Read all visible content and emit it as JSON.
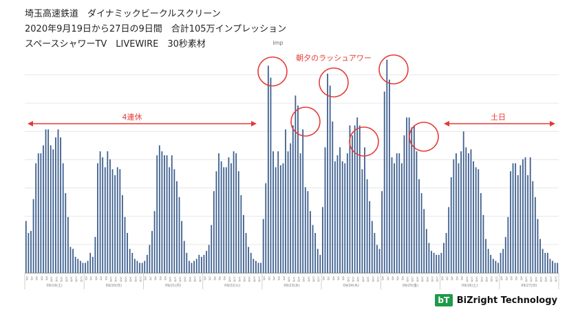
{
  "header": {
    "line1": "埼玉高速鉄道　ダイナミックビークルスクリーン",
    "line2": "2020年9月19日から27日の9日間　合計105万インプレッション",
    "line3": "スペースシャワーTV　LIVEWIRE　30秒素材"
  },
  "brand": {
    "logo_mark": "bT",
    "name": "BiZright Technology",
    "logo_color": "#1d9a4a"
  },
  "annotations": {
    "rush_label": "朝夕のラッシュアワー",
    "holiday_label": "4連休",
    "weekend_label": "土日",
    "accent_color": "#e53935"
  },
  "chart_data": {
    "type": "bar",
    "ylabel": "imp",
    "grid": true,
    "bar_color": "#3d5f8f",
    "hours": [
      "0時",
      "1時",
      "2時",
      "3時",
      "4時",
      "5時",
      "6時",
      "7時",
      "8時",
      "9時",
      "10時",
      "11時",
      "12時",
      "13時",
      "14時",
      "15時",
      "16時",
      "17時",
      "18時",
      "19時",
      "20時",
      "21時",
      "22時",
      "23時"
    ],
    "days": [
      "09/19(土)",
      "09/20(日)",
      "09/21(月)",
      "09/22(火)",
      "09/23(水)",
      "09/24(木)",
      "09/25(金)",
      "09/26(土)",
      "09/27(日)"
    ],
    "series": [
      {
        "values": [
          0.26,
          0.2,
          0.21,
          0.37,
          0.55,
          0.6,
          0.6,
          0.64,
          0.72,
          0.72,
          0.64,
          0.62,
          0.68,
          0.72,
          0.68,
          0.55,
          0.4,
          0.28,
          0.13,
          0.12,
          0.08,
          0.07,
          0.06,
          0.05
        ]
      },
      {
        "values": [
          0.05,
          0.06,
          0.1,
          0.08,
          0.18,
          0.55,
          0.61,
          0.58,
          0.53,
          0.61,
          0.57,
          0.52,
          0.49,
          0.53,
          0.52,
          0.39,
          0.28,
          0.2,
          0.12,
          0.1,
          0.07,
          0.06,
          0.05,
          0.05
        ]
      },
      {
        "values": [
          0.06,
          0.09,
          0.14,
          0.21,
          0.31,
          0.59,
          0.64,
          0.61,
          0.59,
          0.59,
          0.53,
          0.59,
          0.52,
          0.46,
          0.38,
          0.26,
          0.16,
          0.1,
          0.06,
          0.05,
          0.06,
          0.07,
          0.09,
          0.08
        ]
      },
      {
        "values": [
          0.09,
          0.11,
          0.14,
          0.24,
          0.41,
          0.51,
          0.6,
          0.56,
          0.53,
          0.53,
          0.58,
          0.55,
          0.61,
          0.6,
          0.51,
          0.39,
          0.29,
          0.2,
          0.13,
          0.1,
          0.07,
          0.06,
          0.05,
          0.05
        ]
      },
      {
        "values": [
          0.27,
          0.45,
          1.04,
          0.98,
          0.61,
          0.53,
          0.61,
          0.54,
          0.55,
          0.72,
          0.61,
          0.65,
          0.74,
          0.89,
          0.84,
          0.6,
          0.72,
          0.43,
          0.41,
          0.31,
          0.24,
          0.2,
          0.12,
          0.09
        ]
      },
      {
        "values": [
          0.33,
          0.63,
          1.0,
          0.94,
          0.76,
          0.56,
          0.59,
          0.63,
          0.56,
          0.55,
          0.6,
          0.74,
          0.69,
          0.74,
          0.78,
          0.74,
          0.52,
          0.63,
          0.47,
          0.36,
          0.26,
          0.2,
          0.14,
          0.12
        ]
      },
      {
        "values": [
          0.41,
          0.91,
          1.07,
          0.97,
          0.58,
          0.55,
          0.6,
          0.6,
          0.55,
          0.69,
          0.78,
          0.78,
          0.73,
          0.74,
          0.61,
          0.47,
          0.4,
          0.32,
          0.22,
          0.15,
          0.11,
          0.1,
          0.09,
          0.09
        ]
      },
      {
        "values": [
          0.1,
          0.15,
          0.2,
          0.33,
          0.48,
          0.57,
          0.6,
          0.55,
          0.61,
          0.71,
          0.63,
          0.6,
          0.62,
          0.56,
          0.53,
          0.52,
          0.4,
          0.29,
          0.17,
          0.12,
          0.09,
          0.07,
          0.06,
          0.05
        ]
      },
      {
        "values": [
          0.1,
          0.12,
          0.18,
          0.28,
          0.51,
          0.55,
          0.55,
          0.49,
          0.54,
          0.57,
          0.58,
          0.49,
          0.58,
          0.46,
          0.38,
          0.27,
          0.17,
          0.12,
          0.1,
          0.1,
          0.07,
          0.06,
          0.05,
          0.05
        ]
      }
    ]
  }
}
